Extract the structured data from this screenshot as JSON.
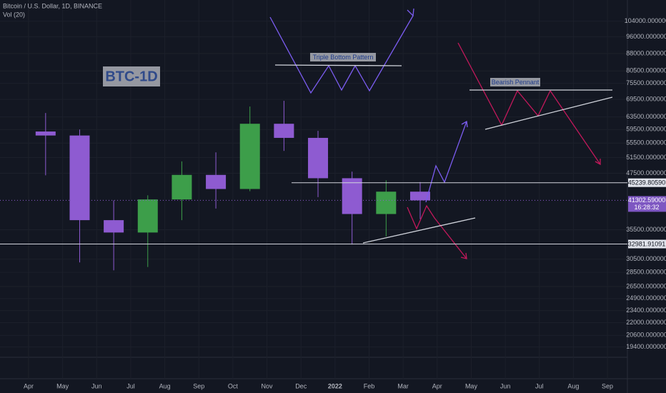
{
  "chart_data": {
    "type": "candlestick",
    "title": "Bitcoin / U.S. Dollar, 1D, BINANCE",
    "subtitle": "Vol (20)",
    "categories": [
      "Apr",
      "May",
      "Jun",
      "Jul",
      "Aug",
      "Sep",
      "Oct",
      "Nov",
      "Dec",
      "2022",
      "Feb",
      "Mar",
      "Apr",
      "May",
      "Jun",
      "Jul",
      "Aug",
      "Sep"
    ],
    "open": [
      58900,
      57700,
      37300,
      35000,
      41500,
      47100,
      43800,
      61300,
      57000,
      46300,
      38500,
      43200,
      null,
      null,
      null,
      null,
      null,
      null
    ],
    "high": [
      64800,
      59500,
      41300,
      42400,
      50500,
      52900,
      67000,
      69000,
      59100,
      47900,
      45800,
      45400,
      null,
      null,
      null,
      null,
      null,
      null
    ],
    "low": [
      47000,
      30000,
      28800,
      29300,
      37300,
      39600,
      43300,
      53300,
      42000,
      32900,
      34300,
      37500,
      null,
      null,
      null,
      null,
      null,
      null
    ],
    "close": [
      57700,
      37300,
      35000,
      41500,
      47100,
      43800,
      61300,
      57000,
      46300,
      38500,
      43200,
      41302.59,
      null,
      null,
      null,
      null,
      null,
      null
    ],
    "up_color": "#3d9e4a",
    "down_color": "#8e5bd1",
    "log_scale": true,
    "ylim": [
      18400,
      116000
    ],
    "yticks": [
      {
        "value": 104000,
        "label": "104000.000000"
      },
      {
        "value": 96000,
        "label": "96000.000000"
      },
      {
        "value": 88000,
        "label": "88000.000000"
      },
      {
        "value": 80500,
        "label": "80500.000000"
      },
      {
        "value": 75500,
        "label": "75500.000000"
      },
      {
        "value": 69500,
        "label": "69500.000000"
      },
      {
        "value": 63500,
        "label": "63500.000000"
      },
      {
        "value": 59500,
        "label": "59500.000000"
      },
      {
        "value": 55500,
        "label": "55500.000000"
      },
      {
        "value": 51500,
        "label": "51500.000000"
      },
      {
        "value": 47500,
        "label": "47500.000000"
      },
      {
        "value": 35500,
        "label": "35500.000000"
      },
      {
        "value": 30500,
        "label": "30500.000000"
      },
      {
        "value": 28500,
        "label": "28500.000000"
      },
      {
        "value": 26500,
        "label": "26500.000000"
      },
      {
        "value": 24900,
        "label": "24900.000000"
      },
      {
        "value": 23400,
        "label": "23400.000000"
      },
      {
        "value": 22000,
        "label": "22000.000000"
      },
      {
        "value": 20600,
        "label": "20600.000000"
      },
      {
        "value": 19400,
        "label": "19400.000000"
      }
    ],
    "grid": true,
    "price_lines": [
      {
        "value": 45239.8059,
        "label": "45239.80590"
      },
      {
        "value": 32981.91091,
        "label": "32981.91091"
      }
    ],
    "last_price": {
      "value": 41302.59,
      "label": "41302.59000"
    },
    "countdown": "16:28:32",
    "annotations": [
      "BTC-1D",
      "Triple Bottom Pattern",
      "Bearish Pennant"
    ]
  }
}
